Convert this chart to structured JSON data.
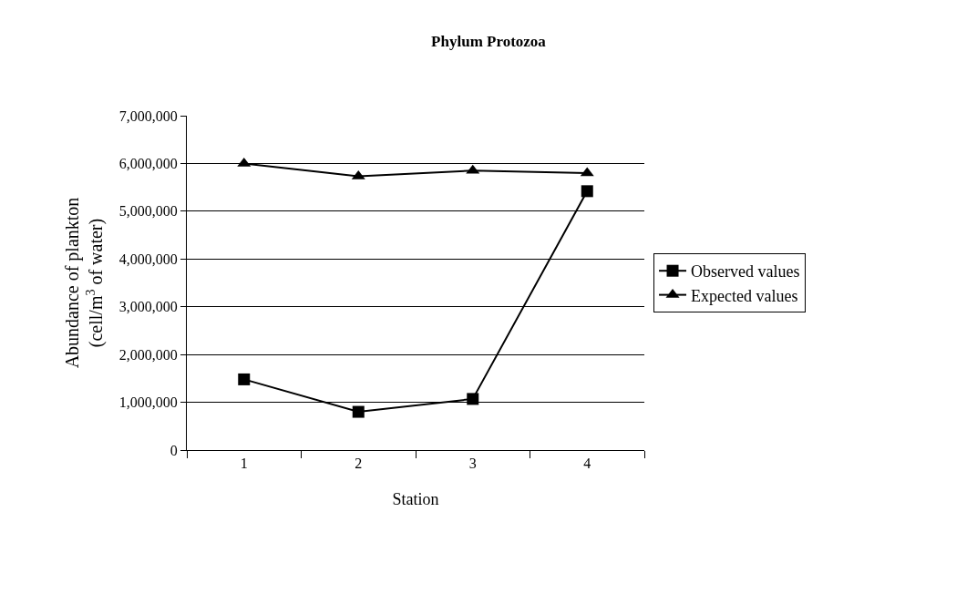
{
  "chart_data": {
    "type": "line",
    "title": "Phylum Protozoa",
    "xlabel": "Station",
    "ylabel": "Abundance of plankton\n(cell/m$^{3}$ of water)",
    "categories": [
      "1",
      "2",
      "3",
      "4"
    ],
    "series": [
      {
        "name": "Observed values",
        "color": "#000000",
        "marker": "square",
        "values": [
          1480000,
          800000,
          1070000,
          5420000
        ]
      },
      {
        "name": "Expected values",
        "color": "#000000",
        "marker": "triangle",
        "values": [
          6000000,
          5730000,
          5850000,
          5800000
        ]
      }
    ],
    "ylim": [
      0,
      7000000
    ],
    "yticks": [
      {
        "value": 0,
        "label": "0"
      },
      {
        "value": 1000000,
        "label": "1,000,000"
      },
      {
        "value": 2000000,
        "label": "2,000,000"
      },
      {
        "value": 3000000,
        "label": "3,000,000"
      },
      {
        "value": 4000000,
        "label": "4,000,000"
      },
      {
        "value": 5000000,
        "label": "5,000,000"
      },
      {
        "value": 6000000,
        "label": "6,000,000"
      },
      {
        "value": 7000000,
        "label": "7,000,000"
      }
    ],
    "grid": "y",
    "legend": "right",
    "line_style": "solid"
  }
}
